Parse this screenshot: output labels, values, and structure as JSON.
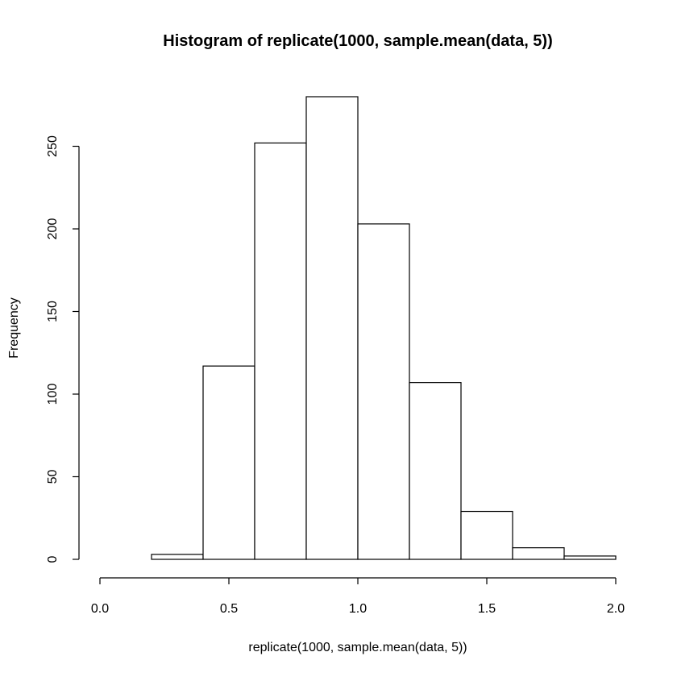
{
  "chart_data": {
    "type": "bar",
    "title": "Histogram of replicate(1000, sample.mean(data, 5))",
    "xlabel": "replicate(1000, sample.mean(data, 5))",
    "ylabel": "Frequency",
    "bins": [
      {
        "x0": 0.2,
        "x1": 0.4,
        "count": 3
      },
      {
        "x0": 0.4,
        "x1": 0.6,
        "count": 117
      },
      {
        "x0": 0.6,
        "x1": 0.8,
        "count": 252
      },
      {
        "x0": 0.8,
        "x1": 1.0,
        "count": 280
      },
      {
        "x0": 1.0,
        "x1": 1.2,
        "count": 203
      },
      {
        "x0": 1.2,
        "x1": 1.4,
        "count": 107
      },
      {
        "x0": 1.4,
        "x1": 1.6,
        "count": 29
      },
      {
        "x0": 1.6,
        "x1": 1.8,
        "count": 7
      },
      {
        "x0": 1.8,
        "x1": 2.0,
        "count": 2
      }
    ],
    "xlim": [
      0,
      2
    ],
    "ylim": [
      0,
      280
    ],
    "x_ticks": [
      0.0,
      0.5,
      1.0,
      1.5,
      2.0
    ],
    "x_tick_labels": [
      "0.0",
      "0.5",
      "1.0",
      "1.5",
      "2.0"
    ],
    "y_ticks": [
      0,
      50,
      100,
      150,
      200,
      250
    ],
    "y_tick_labels": [
      "0",
      "50",
      "100",
      "150",
      "200",
      "250"
    ],
    "grid": false,
    "legend": "none"
  }
}
